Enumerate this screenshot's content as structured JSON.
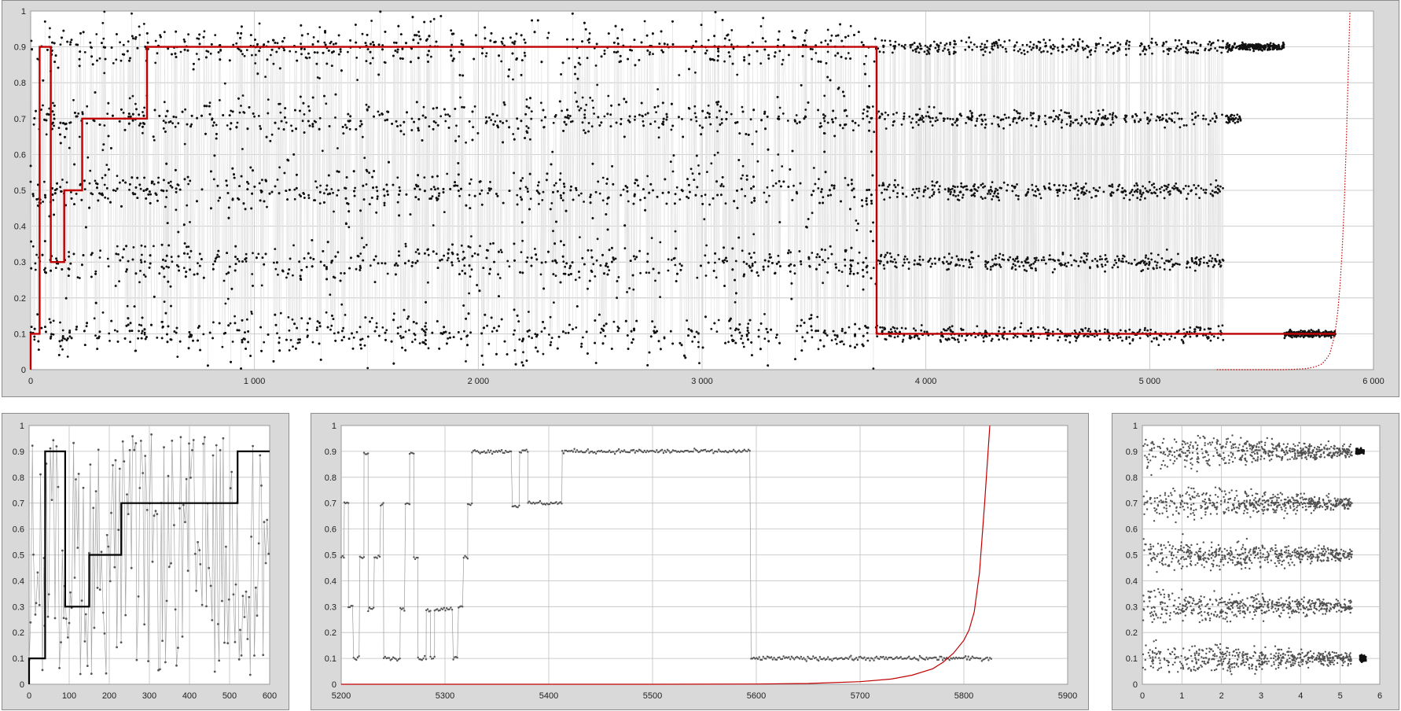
{
  "colors": {
    "panel_bg": "#d9d9d9",
    "plot_bg": "#ffffff",
    "grid": "#bfbfbf",
    "points": "#111111",
    "connector": "#c8c8c8",
    "step_red": "#c00000",
    "step_black": "#000000",
    "curve_red": "#c00000"
  },
  "chart_data": [
    {
      "id": "overview",
      "type": "scatter",
      "xlim": [
        0,
        6000
      ],
      "ylim": [
        0,
        1
      ],
      "x_ticks": [
        "0",
        "1 000",
        "2 000",
        "3 000",
        "4 000",
        "5 000",
        "6 000"
      ],
      "y_ticks": [
        "0",
        "0.1",
        "0.2",
        "0.3",
        "0.4",
        "0.5",
        "0.6",
        "0.7",
        "0.8",
        "0.9",
        "1"
      ],
      "grid": true,
      "series": [
        {
          "type": "scatter",
          "style": "points",
          "color": "#111111",
          "note_levels": [
            0.1,
            0.3,
            0.5,
            0.7,
            0.9
          ],
          "segments": [
            {
              "x": [
                0,
                3780
              ],
              "levels": [
                0.1,
                0.3,
                0.5,
                0.7,
                0.9
              ],
              "spread": 0.045,
              "plus_uniform": true
            },
            {
              "x": [
                3780,
                5330
              ],
              "levels": [
                0.1,
                0.3,
                0.5,
                0.7,
                0.9
              ],
              "spread": 0.02
            },
            {
              "x": [
                5340,
                5410
              ],
              "levels": [
                0.7,
                0.9
              ],
              "spread": 0.01
            },
            {
              "x": [
                5410,
                5600
              ],
              "levels": [
                0.9
              ],
              "spread": 0.008
            },
            {
              "x": [
                5600,
                5830
              ],
              "levels": [
                0.1
              ],
              "spread": 0.008
            }
          ]
        },
        {
          "type": "line",
          "style": "step",
          "color": "#c00000",
          "points": [
            [
              0,
              0
            ],
            [
              0,
              0.1
            ],
            [
              40,
              0.1
            ],
            [
              40,
              0.9
            ],
            [
              90,
              0.9
            ],
            [
              90,
              0.3
            ],
            [
              150,
              0.3
            ],
            [
              150,
              0.5
            ],
            [
              230,
              0.5
            ],
            [
              230,
              0.7
            ],
            [
              520,
              0.7
            ],
            [
              520,
              0.9
            ],
            [
              3780,
              0.9
            ],
            [
              3780,
              0.1
            ],
            [
              5830,
              0.1
            ]
          ]
        },
        {
          "type": "line",
          "style": "dotted-curve",
          "color": "#c00000",
          "x": [
            5300,
            5400,
            5500,
            5600,
            5650,
            5700,
            5740,
            5770,
            5790,
            5805,
            5820,
            5830,
            5840,
            5850,
            5860,
            5870,
            5880,
            5890,
            5895
          ],
          "y": [
            0,
            0,
            0,
            0,
            0.001,
            0.003,
            0.008,
            0.016,
            0.03,
            0.045,
            0.08,
            0.11,
            0.16,
            0.23,
            0.33,
            0.47,
            0.66,
            0.9,
            1.0
          ]
        }
      ]
    },
    {
      "id": "zoom-start",
      "type": "scatter",
      "xlim": [
        0,
        600
      ],
      "ylim": [
        0,
        1
      ],
      "x_ticks": [
        "0",
        "100",
        "200",
        "300",
        "400",
        "500",
        "600"
      ],
      "y_ticks": [
        "0",
        "0.1",
        "0.2",
        "0.3",
        "0.4",
        "0.5",
        "0.6",
        "0.7",
        "0.8",
        "0.9",
        "1"
      ],
      "grid": true,
      "series": [
        {
          "type": "scatter",
          "style": "points-connected",
          "color": "#555555",
          "x_range": [
            0,
            600
          ],
          "n": 170
        },
        {
          "type": "line",
          "style": "step",
          "color": "#000000",
          "points": [
            [
              0,
              0
            ],
            [
              0,
              0.1
            ],
            [
              40,
              0.1
            ],
            [
              40,
              0.9
            ],
            [
              90,
              0.9
            ],
            [
              90,
              0.3
            ],
            [
              150,
              0.3
            ],
            [
              150,
              0.5
            ],
            [
              230,
              0.5
            ],
            [
              230,
              0.7
            ],
            [
              520,
              0.7
            ],
            [
              520,
              0.9
            ],
            [
              600,
              0.9
            ]
          ]
        }
      ]
    },
    {
      "id": "zoom-end",
      "type": "scatter",
      "xlim": [
        5200,
        5900
      ],
      "ylim": [
        0,
        1
      ],
      "x_ticks": [
        "5200",
        "5300",
        "5400",
        "5500",
        "5600",
        "5700",
        "5800",
        "5900"
      ],
      "y_ticks": [
        "0",
        "0.1",
        "0.2",
        "0.3",
        "0.4",
        "0.5",
        "0.6",
        "0.7",
        "0.8",
        "0.9",
        "1"
      ],
      "grid": true,
      "series": [
        {
          "type": "line",
          "style": "points-connected",
          "color": "#555555",
          "runs": [
            {
              "x": [
                5200,
                5203
              ],
              "y": 0.49
            },
            {
              "x": [
                5203,
                5207
              ],
              "y": 0.7
            },
            {
              "x": [
                5207,
                5212
              ],
              "y": 0.3
            },
            {
              "x": [
                5212,
                5218
              ],
              "y": 0.1
            },
            {
              "x": [
                5218,
                5222
              ],
              "y": 0.49
            },
            {
              "x": [
                5222,
                5226
              ],
              "y": 0.89
            },
            {
              "x": [
                5226,
                5232
              ],
              "y": 0.29
            },
            {
              "x": [
                5232,
                5238
              ],
              "y": 0.49
            },
            {
              "x": [
                5238,
                5241
              ],
              "y": 0.7
            },
            {
              "x": [
                5241,
                5257
              ],
              "y": 0.1
            },
            {
              "x": [
                5257,
                5262
              ],
              "y": 0.29
            },
            {
              "x": [
                5262,
                5266
              ],
              "y": 0.7
            },
            {
              "x": [
                5266,
                5270
              ],
              "y": 0.9
            },
            {
              "x": [
                5270,
                5274
              ],
              "y": 0.49
            },
            {
              "x": [
                5274,
                5282
              ],
              "y": 0.1
            },
            {
              "x": [
                5282,
                5286
              ],
              "y": 0.29
            },
            {
              "x": [
                5286,
                5290
              ],
              "y": 0.1
            },
            {
              "x": [
                5290,
                5308
              ],
              "y": 0.29
            },
            {
              "x": [
                5308,
                5313
              ],
              "y": 0.1
            },
            {
              "x": [
                5313,
                5318
              ],
              "y": 0.3
            },
            {
              "x": [
                5318,
                5322
              ],
              "y": 0.49
            },
            {
              "x": [
                5322,
                5326
              ],
              "y": 0.7
            },
            {
              "x": [
                5326,
                5365
              ],
              "y": 0.9
            },
            {
              "x": [
                5365,
                5372
              ],
              "y": 0.69
            },
            {
              "x": [
                5372,
                5380
              ],
              "y": 0.9
            },
            {
              "x": [
                5380,
                5413
              ],
              "y": 0.7
            },
            {
              "x": [
                5413,
                5595
              ],
              "y": 0.9
            },
            {
              "x": [
                5595,
                5827
              ],
              "y": 0.1
            }
          ]
        },
        {
          "type": "line",
          "style": "curve",
          "color": "#c00000",
          "x": [
            5200,
            5500,
            5600,
            5650,
            5700,
            5730,
            5750,
            5770,
            5780,
            5790,
            5800,
            5805,
            5810,
            5815,
            5820,
            5825
          ],
          "y": [
            0,
            0,
            0.001,
            0.003,
            0.01,
            0.02,
            0.035,
            0.06,
            0.085,
            0.12,
            0.17,
            0.21,
            0.28,
            0.43,
            0.7,
            1.0
          ]
        }
      ]
    },
    {
      "id": "log-time",
      "type": "scatter",
      "xlim": [
        0,
        6
      ],
      "ylim": [
        0,
        1
      ],
      "x_ticks": [
        "0",
        "1",
        "2",
        "3",
        "4",
        "5",
        "6"
      ],
      "y_ticks": [
        "0",
        "0.1",
        "0.2",
        "0.3",
        "0.4",
        "0.5",
        "0.6",
        "0.7",
        "0.8",
        "0.9",
        "1"
      ],
      "grid": true,
      "series": [
        {
          "type": "scatter",
          "style": "points",
          "color": "#333333",
          "levels": [
            0.1,
            0.3,
            0.5,
            0.7,
            0.9
          ],
          "x_range": [
            0,
            5.3
          ],
          "spread_start": 0.06,
          "spread_end": 0.02,
          "tail": [
            {
              "level": 0.9,
              "x": [
                5.4,
                5.6
              ]
            },
            {
              "level": 0.1,
              "x": [
                5.5,
                5.65
              ]
            }
          ]
        }
      ]
    }
  ]
}
